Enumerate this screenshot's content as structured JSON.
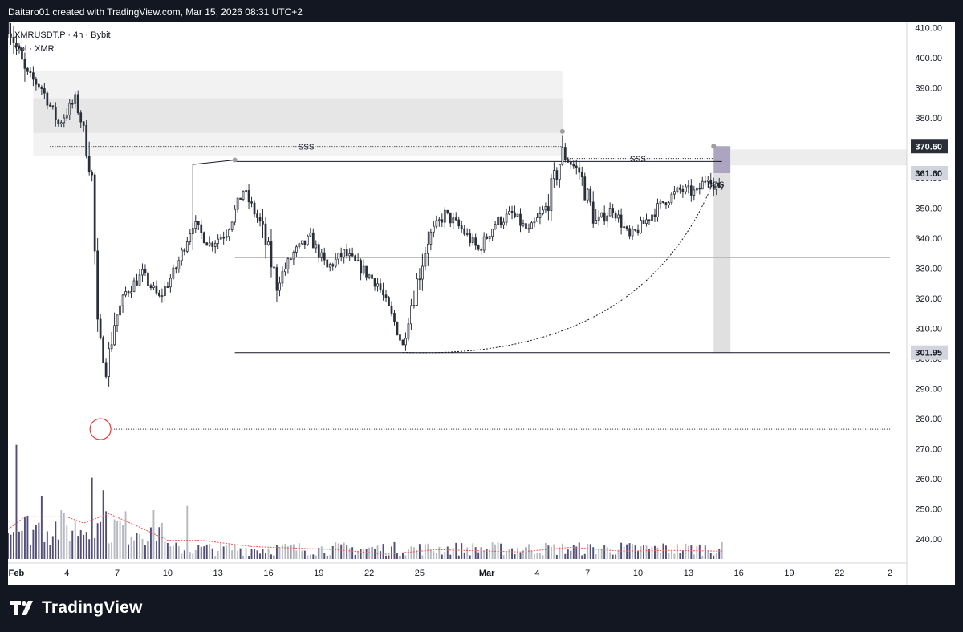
{
  "header": {
    "credit": "Daitaro01 created with TradingView.com, Mar 15, 2026 08:31 UTC+2"
  },
  "legend": {
    "symbol_line": "XMRUSDT.P · 4h · Bybit",
    "volume_line": "Vol · XMR"
  },
  "brand": {
    "name": "TradingView"
  },
  "colors": {
    "background": "#ffffff",
    "frame": "#131722",
    "candle": "#2a2e39",
    "volume_up": "#b2b5be",
    "volume_down": "#4a4570",
    "volume_ma": "#ef5350",
    "supply_zone": "#e6e6e6",
    "short_box": "#8a7fa5",
    "target_box": "#e0e0e0"
  },
  "chart_data": {
    "type": "candlestick",
    "symbol": "XMRUSDT.P",
    "interval": "4h",
    "exchange": "Bybit",
    "y_axis": {
      "ticks": [
        240,
        250,
        260,
        270,
        280,
        290,
        300,
        310,
        320,
        330,
        340,
        350,
        360,
        370,
        380,
        390,
        400,
        410
      ],
      "tick_format": "fixed2",
      "ylim": [
        232,
        412
      ]
    },
    "x_axis": {
      "labels": [
        "Feb",
        "4",
        "7",
        "10",
        "13",
        "16",
        "19",
        "22",
        "25",
        "Mar",
        "4",
        "7",
        "10",
        "13",
        "16",
        "19",
        "22",
        "2"
      ],
      "dates": [
        "2026-02-01",
        "2026-02-04",
        "2026-02-07",
        "2026-02-10",
        "2026-02-13",
        "2026-02-16",
        "2026-02-19",
        "2026-02-22",
        "2026-02-25",
        "2026-03-01",
        "2026-03-04",
        "2026-03-07",
        "2026-03-10",
        "2026-03-13",
        "2026-03-16",
        "2026-03-19",
        "2026-03-22",
        "2026-03-25"
      ],
      "bold_labels": [
        "Feb",
        "Mar"
      ],
      "xlim": [
        "2026-01-31T12:00",
        "2026-03-26T00:00"
      ]
    },
    "price_labels": [
      {
        "value": 370.6,
        "text": "370.60",
        "style": "dark"
      },
      {
        "value": 361.6,
        "text": "361.60",
        "style": "light"
      },
      {
        "value": 301.95,
        "text": "301.95",
        "style": "light"
      }
    ],
    "path": [
      {
        "t": "2026-01-31T12:00",
        "p": 412
      },
      {
        "t": "2026-02-01T12:00",
        "p": 395
      },
      {
        "t": "2026-02-02T12:00",
        "p": 390
      },
      {
        "t": "2026-02-03T12:00",
        "p": 378
      },
      {
        "t": "2026-02-04T12:00",
        "p": 386
      },
      {
        "t": "2026-02-05T00:00",
        "p": 376
      },
      {
        "t": "2026-02-05T12:00",
        "p": 360
      },
      {
        "t": "2026-02-05T20:00",
        "p": 310
      },
      {
        "t": "2026-02-06T08:00",
        "p": 296
      },
      {
        "t": "2026-02-06T20:00",
        "p": 312
      },
      {
        "t": "2026-02-07T12:00",
        "p": 322
      },
      {
        "t": "2026-02-08T12:00",
        "p": 328
      },
      {
        "t": "2026-02-09T12:00",
        "p": 320
      },
      {
        "t": "2026-02-10T12:00",
        "p": 330
      },
      {
        "t": "2026-02-11T12:00",
        "p": 345
      },
      {
        "t": "2026-02-12T12:00",
        "p": 338
      },
      {
        "t": "2026-02-13T12:00",
        "p": 342
      },
      {
        "t": "2026-02-14T12:00",
        "p": 356
      },
      {
        "t": "2026-02-15T12:00",
        "p": 345
      },
      {
        "t": "2026-02-16T12:00",
        "p": 325
      },
      {
        "t": "2026-02-17T12:00",
        "p": 335
      },
      {
        "t": "2026-02-18T12:00",
        "p": 340
      },
      {
        "t": "2026-02-19T12:00",
        "p": 330
      },
      {
        "t": "2026-02-20T12:00",
        "p": 335
      },
      {
        "t": "2026-02-21T12:00",
        "p": 330
      },
      {
        "t": "2026-02-22T12:00",
        "p": 325
      },
      {
        "t": "2026-02-23T12:00",
        "p": 312
      },
      {
        "t": "2026-02-24T00:00",
        "p": 304
      },
      {
        "t": "2026-02-24T12:00",
        "p": 318
      },
      {
        "t": "2026-02-25T12:00",
        "p": 340
      },
      {
        "t": "2026-02-26T12:00",
        "p": 348
      },
      {
        "t": "2026-02-27T12:00",
        "p": 343
      },
      {
        "t": "2026-02-28T12:00",
        "p": 336
      },
      {
        "t": "2026-03-01T12:00",
        "p": 345
      },
      {
        "t": "2026-03-02T12:00",
        "p": 348
      },
      {
        "t": "2026-03-03T12:00",
        "p": 342
      },
      {
        "t": "2026-03-04T12:00",
        "p": 350
      },
      {
        "t": "2026-03-05T12:00",
        "p": 368
      },
      {
        "t": "2026-03-06T12:00",
        "p": 362
      },
      {
        "t": "2026-03-07T12:00",
        "p": 345
      },
      {
        "t": "2026-03-08T12:00",
        "p": 350
      },
      {
        "t": "2026-03-09T12:00",
        "p": 340
      },
      {
        "t": "2026-03-10T12:00",
        "p": 346
      },
      {
        "t": "2026-03-11T12:00",
        "p": 352
      },
      {
        "t": "2026-03-12T12:00",
        "p": 356
      },
      {
        "t": "2026-03-13T12:00",
        "p": 355
      },
      {
        "t": "2026-03-14T06:00",
        "p": 362
      },
      {
        "t": "2026-03-14T12:00",
        "p": 356
      },
      {
        "t": "2026-03-15T00:00",
        "p": 358
      }
    ],
    "volume": {
      "spikes": [
        {
          "t": "2026-02-01T00:00",
          "v": 7.3
        },
        {
          "t": "2026-02-05T12:00",
          "v": 5.2
        },
        {
          "t": "2026-02-06T04:00",
          "v": 4.4
        },
        {
          "t": "2026-02-11T04:00",
          "v": 3.4
        },
        {
          "t": "2026-02-02T12:00",
          "v": 4.0
        }
      ],
      "ma_points": [
        {
          "t": "2026-01-31T12:00",
          "v": 1.9
        },
        {
          "t": "2026-02-01T12:00",
          "v": 2.7
        },
        {
          "t": "2026-02-04T00:00",
          "v": 2.7
        },
        {
          "t": "2026-02-05T00:00",
          "v": 2.3
        },
        {
          "t": "2026-02-06T12:00",
          "v": 2.9
        },
        {
          "t": "2026-02-08T00:00",
          "v": 2.2
        },
        {
          "t": "2026-02-10T00:00",
          "v": 1.2
        },
        {
          "t": "2026-02-12T00:00",
          "v": 1.2
        },
        {
          "t": "2026-02-15T00:00",
          "v": 0.8
        },
        {
          "t": "2026-02-20T00:00",
          "v": 0.6
        },
        {
          "t": "2026-02-23T00:00",
          "v": 0.3
        },
        {
          "t": "2026-02-26T00:00",
          "v": 0.6
        },
        {
          "t": "2026-03-03T00:00",
          "v": 0.45
        },
        {
          "t": "2026-03-06T00:00",
          "v": 0.75
        },
        {
          "t": "2026-03-09T00:00",
          "v": 0.5
        },
        {
          "t": "2026-03-12T00:00",
          "v": 0.55
        },
        {
          "t": "2026-03-15T00:00",
          "v": 0.5
        }
      ]
    },
    "annotations": {
      "supply_zone": {
        "from": "2026-02-02T00:00",
        "to": "2026-03-05T12:00",
        "outer": [
          367.5,
          395.5
        ],
        "inner": [
          375,
          386.5
        ]
      },
      "sss_lines": [
        {
          "label": "SSS",
          "from": "2026-02-03T00:00",
          "to": "2026-03-05T12:00",
          "price": 370.5
        },
        {
          "label": "SSS",
          "from": "2026-03-05T12:00",
          "to": "2026-03-14T12:00",
          "price": 366.5
        }
      ],
      "range_high": {
        "from": "2026-02-14T00:00",
        "to": "2026-03-15T00:00",
        "price": 365.5
      },
      "range_mid": {
        "from": "2026-02-14T00:00",
        "to": "2026-03-25T00:00",
        "price": 333.5
      },
      "range_low": {
        "from": "2026-02-14T00:00",
        "to": "2026-03-25T00:00",
        "price": 301.95
      },
      "wedge": {
        "start": "2026-02-11T12:00",
        "peak": "2026-02-14T00:00",
        "start_price": 364.5,
        "peak_price": 366
      },
      "swing_low_marker": {
        "t": "2026-02-06T00:00",
        "price": 276.5,
        "line_to": "2026-03-25T00:00"
      },
      "curve": {
        "from": "2026-02-24T00:00",
        "to": "2026-03-14T12:00",
        "from_price": 302,
        "to_price": 359
      },
      "bos_label": "BOS",
      "short_position": {
        "from": "2026-03-14T12:00",
        "to": "2026-03-15T12:00",
        "stop": [
          361.6,
          370.6
        ],
        "target": [
          301.95,
          361.6
        ]
      },
      "pivot_dots": [
        {
          "t": "2026-02-14T00:00",
          "price": 366
        },
        {
          "t": "2026-03-05T12:00",
          "price": 375.5
        },
        {
          "t": "2026-03-14T12:00",
          "price": 370.6
        }
      ]
    }
  }
}
